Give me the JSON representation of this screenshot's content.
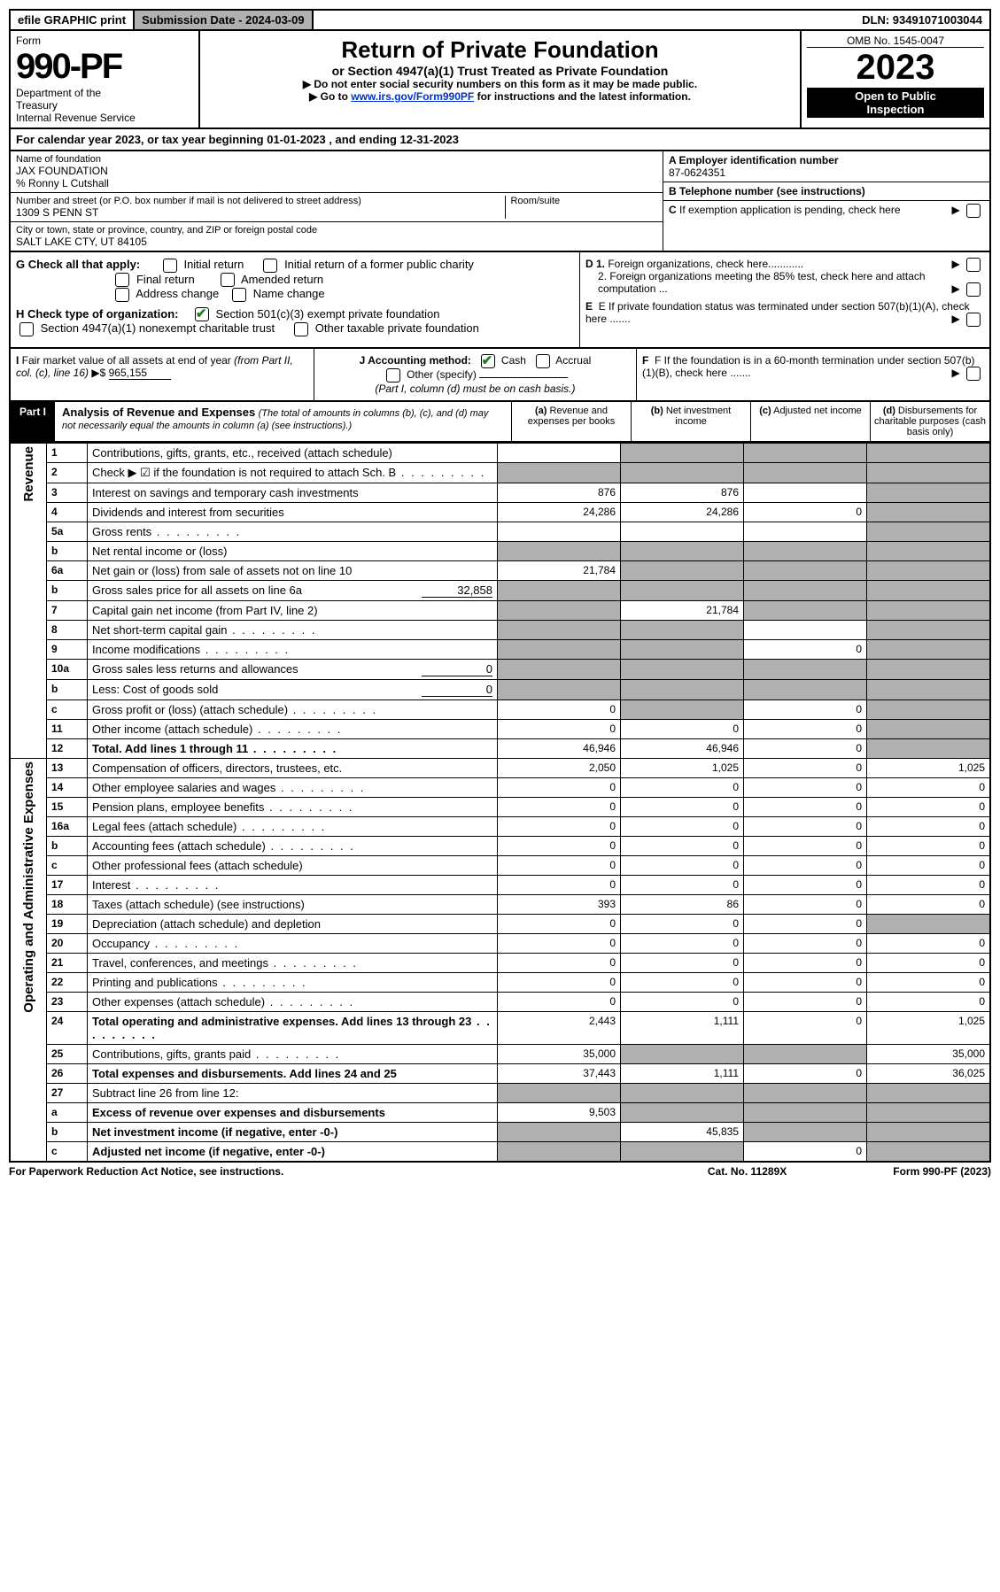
{
  "topbar": {
    "efile": "efile GRAPHIC print",
    "submission": "Submission Date - 2024-03-09",
    "dln": "DLN: 93491071003044"
  },
  "header": {
    "form_label": "Form",
    "form_num": "990-PF",
    "dept": "Department of the Treasury\nInternal Revenue Service",
    "title": "Return of Private Foundation",
    "subtitle": "or Section 4947(a)(1) Trust Treated as Private Foundation",
    "note1": "▶ Do not enter social security numbers on this form as it may be made public.",
    "note2": "▶ Go to www.irs.gov/Form990PF for instructions and the latest information.",
    "link_text": "www.irs.gov/Form990PF",
    "omb": "OMB No. 1545-0047",
    "year": "2023",
    "inspect": "Open to Public\nInspection"
  },
  "calendar": "For calendar year 2023, or tax year beginning 01-01-2023                           , and ending 12-31-2023",
  "info": {
    "name_label": "Name of foundation",
    "name": "JAX FOUNDATION",
    "care_of": "% Ronny L Cutshall",
    "addr_label": "Number and street (or P.O. box number if mail is not delivered to street address)",
    "addr": "1309 S PENN ST",
    "room_label": "Room/suite",
    "city_label": "City or town, state or province, country, and ZIP or foreign postal code",
    "city": "SALT LAKE CTY, UT  84105",
    "a_label": "A Employer identification number",
    "a_value": "87-0624351",
    "b_label": "B Telephone number (see instructions)",
    "c_label": "C If exemption application is pending, check here",
    "d1_label": "D 1. Foreign organizations, check here",
    "d2_label": "2. Foreign organizations meeting the 85% test, check here and attach computation ...",
    "e_label": "E  If private foundation status was terminated under section 507(b)(1)(A), check here .......",
    "f_label": "F  If the foundation is in a 60-month termination under section 507(b)(1)(B), check here ......."
  },
  "checks": {
    "g_label": "G Check all that apply:",
    "initial": "Initial return",
    "initial_former": "Initial return of a former public charity",
    "final": "Final return",
    "amended": "Amended return",
    "address": "Address change",
    "name_change": "Name change",
    "h_label": "H Check type of organization:",
    "h_501c3": "Section 501(c)(3) exempt private foundation",
    "h_4947": "Section 4947(a)(1) nonexempt charitable trust",
    "h_other": "Other taxable private foundation",
    "i_label": "I Fair market value of all assets at end of year (from Part II, col. (c), line 16) ▶$",
    "i_value": "965,155",
    "j_label": "J Accounting method:",
    "j_cash": "Cash",
    "j_accrual": "Accrual",
    "j_other": "Other (specify)",
    "j_note": "(Part I, column (d) must be on cash basis.)"
  },
  "part1": {
    "label": "Part I",
    "title": "Analysis of Revenue and Expenses",
    "subtitle": "(The total of amounts in columns (b), (c), and (d) may not necessarily equal the amounts in column (a) (see instructions).)",
    "col_a": "(a) Revenue and expenses per books",
    "col_b": "(b) Net investment income",
    "col_c": "(c) Adjusted net income",
    "col_d": "(d) Disbursements for charitable purposes (cash basis only)"
  },
  "revenue_label": "Revenue",
  "expenses_label": "Operating and Administrative Expenses",
  "rows": [
    {
      "n": "1",
      "d": "Contributions, gifts, grants, etc., received (attach schedule)",
      "a": "",
      "b": "gray",
      "c": "gray",
      "dd": "gray"
    },
    {
      "n": "2",
      "d": "Check ▶ ☑ if the foundation is not required to attach Sch. B",
      "a": "gray",
      "b": "gray",
      "c": "gray",
      "dd": "gray",
      "dots": true
    },
    {
      "n": "3",
      "d": "Interest on savings and temporary cash investments",
      "a": "876",
      "b": "876",
      "c": "",
      "dd": "gray"
    },
    {
      "n": "4",
      "d": "Dividends and interest from securities",
      "a": "24,286",
      "b": "24,286",
      "c": "0",
      "dd": "gray"
    },
    {
      "n": "5a",
      "d": "Gross rents",
      "a": "",
      "b": "",
      "c": "",
      "dd": "gray",
      "dots": true
    },
    {
      "n": "b",
      "d": "Net rental income or (loss)",
      "a": "gray",
      "b": "gray",
      "c": "gray",
      "dd": "gray",
      "inset": true
    },
    {
      "n": "6a",
      "d": "Net gain or (loss) from sale of assets not on line 10",
      "a": "21,784",
      "b": "gray",
      "c": "gray",
      "dd": "gray"
    },
    {
      "n": "b",
      "d": "Gross sales price for all assets on line 6a",
      "a": "gray",
      "b": "gray",
      "c": "gray",
      "dd": "gray",
      "inline_val": "32,858"
    },
    {
      "n": "7",
      "d": "Capital gain net income (from Part IV, line 2)",
      "a": "gray",
      "b": "21,784",
      "c": "gray",
      "dd": "gray"
    },
    {
      "n": "8",
      "d": "Net short-term capital gain",
      "a": "gray",
      "b": "gray",
      "c": "",
      "dd": "gray",
      "dots": true
    },
    {
      "n": "9",
      "d": "Income modifications",
      "a": "gray",
      "b": "gray",
      "c": "0",
      "dd": "gray",
      "dots": true
    },
    {
      "n": "10a",
      "d": "Gross sales less returns and allowances",
      "a": "gray",
      "b": "gray",
      "c": "gray",
      "dd": "gray",
      "inline_val": "0"
    },
    {
      "n": "b",
      "d": "Less: Cost of goods sold",
      "a": "gray",
      "b": "gray",
      "c": "gray",
      "dd": "gray",
      "inline_val": "0"
    },
    {
      "n": "c",
      "d": "Gross profit or (loss) (attach schedule)",
      "a": "0",
      "b": "gray",
      "c": "0",
      "dd": "gray",
      "dots": true
    },
    {
      "n": "11",
      "d": "Other income (attach schedule)",
      "a": "0",
      "b": "0",
      "c": "0",
      "dd": "gray",
      "dots": true
    },
    {
      "n": "12",
      "d": "Total. Add lines 1 through 11",
      "a": "46,946",
      "b": "46,946",
      "c": "0",
      "dd": "gray",
      "bold": true,
      "dots": true
    }
  ],
  "exp_rows": [
    {
      "n": "13",
      "d": "Compensation of officers, directors, trustees, etc.",
      "a": "2,050",
      "b": "1,025",
      "c": "0",
      "dd": "1,025"
    },
    {
      "n": "14",
      "d": "Other employee salaries and wages",
      "a": "0",
      "b": "0",
      "c": "0",
      "dd": "0",
      "dots": true
    },
    {
      "n": "15",
      "d": "Pension plans, employee benefits",
      "a": "0",
      "b": "0",
      "c": "0",
      "dd": "0",
      "dots": true
    },
    {
      "n": "16a",
      "d": "Legal fees (attach schedule)",
      "a": "0",
      "b": "0",
      "c": "0",
      "dd": "0",
      "dots": true
    },
    {
      "n": "b",
      "d": "Accounting fees (attach schedule)",
      "a": "0",
      "b": "0",
      "c": "0",
      "dd": "0",
      "dots": true
    },
    {
      "n": "c",
      "d": "Other professional fees (attach schedule)",
      "a": "0",
      "b": "0",
      "c": "0",
      "dd": "0"
    },
    {
      "n": "17",
      "d": "Interest",
      "a": "0",
      "b": "0",
      "c": "0",
      "dd": "0",
      "dots": true
    },
    {
      "n": "18",
      "d": "Taxes (attach schedule) (see instructions)",
      "a": "393",
      "b": "86",
      "c": "0",
      "dd": "0"
    },
    {
      "n": "19",
      "d": "Depreciation (attach schedule) and depletion",
      "a": "0",
      "b": "0",
      "c": "0",
      "dd": "gray"
    },
    {
      "n": "20",
      "d": "Occupancy",
      "a": "0",
      "b": "0",
      "c": "0",
      "dd": "0",
      "dots": true
    },
    {
      "n": "21",
      "d": "Travel, conferences, and meetings",
      "a": "0",
      "b": "0",
      "c": "0",
      "dd": "0",
      "dots": true
    },
    {
      "n": "22",
      "d": "Printing and publications",
      "a": "0",
      "b": "0",
      "c": "0",
      "dd": "0",
      "dots": true
    },
    {
      "n": "23",
      "d": "Other expenses (attach schedule)",
      "a": "0",
      "b": "0",
      "c": "0",
      "dd": "0",
      "dots": true
    },
    {
      "n": "24",
      "d": "Total operating and administrative expenses. Add lines 13 through 23",
      "a": "2,443",
      "b": "1,111",
      "c": "0",
      "dd": "1,025",
      "bold": true,
      "dots": true
    },
    {
      "n": "25",
      "d": "Contributions, gifts, grants paid",
      "a": "35,000",
      "b": "gray",
      "c": "gray",
      "dd": "35,000",
      "dots": true
    },
    {
      "n": "26",
      "d": "Total expenses and disbursements. Add lines 24 and 25",
      "a": "37,443",
      "b": "1,111",
      "c": "0",
      "dd": "36,025",
      "bold": true
    }
  ],
  "net_rows": [
    {
      "n": "27",
      "d": "Subtract line 26 from line 12:",
      "a": "gray",
      "b": "gray",
      "c": "gray",
      "dd": "gray"
    },
    {
      "n": "a",
      "d": "Excess of revenue over expenses and disbursements",
      "a": "9,503",
      "b": "gray",
      "c": "gray",
      "dd": "gray",
      "bold": true
    },
    {
      "n": "b",
      "d": "Net investment income (if negative, enter -0-)",
      "a": "gray",
      "b": "45,835",
      "c": "gray",
      "dd": "gray",
      "bold": true
    },
    {
      "n": "c",
      "d": "Adjusted net income (if negative, enter -0-)",
      "a": "gray",
      "b": "gray",
      "c": "0",
      "dd": "gray",
      "bold": true
    }
  ],
  "footer": {
    "left": "For Paperwork Reduction Act Notice, see instructions.",
    "mid": "Cat. No. 11289X",
    "right": "Form 990-PF (2023)"
  }
}
